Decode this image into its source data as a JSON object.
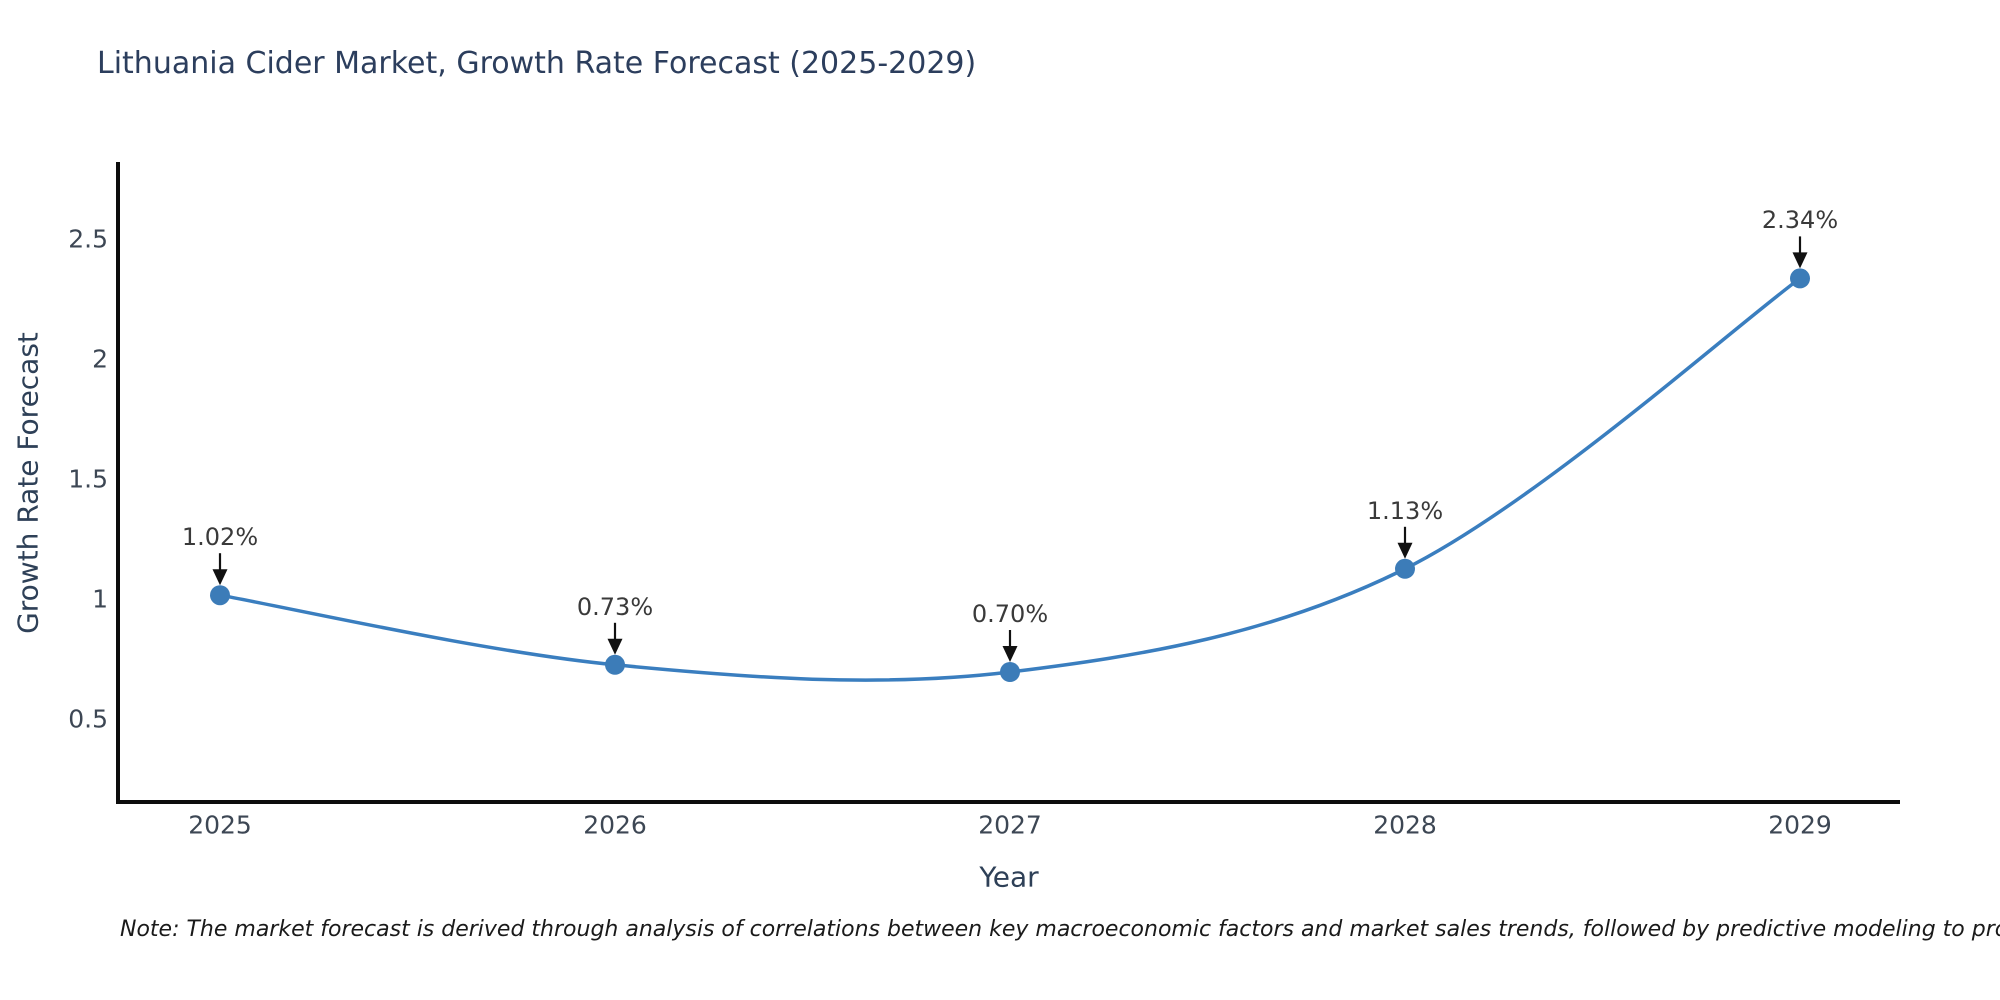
{
  "chart_data": {
    "type": "line",
    "title": "Lithuania Cider Market, Growth Rate Forecast (2025-2029)",
    "xlabel": "Year",
    "ylabel": "Growth Rate Forecast",
    "x": [
      2025,
      2026,
      2027,
      2028,
      2029
    ],
    "x_tick_labels": [
      "2025",
      "2026",
      "2027",
      "2028",
      "2029"
    ],
    "series": [
      {
        "name": "Growth Rate Forecast",
        "values": [
          1.02,
          0.73,
          0.7,
          1.13,
          2.34
        ],
        "point_labels": [
          "1.02%",
          "0.73%",
          "0.70%",
          "1.13%",
          "2.34%"
        ]
      }
    ],
    "yticks": [
      0.5,
      1,
      1.5,
      2,
      2.5
    ],
    "y_tick_labels": [
      "0.5",
      "1",
      "1.5",
      "2",
      "2.5"
    ],
    "ylim": [
      0.16,
      2.83
    ],
    "grid": false,
    "legend_position": "none",
    "line_shape": "spline",
    "annotation_arrows": true
  },
  "note": {
    "text": "Note: The market forecast is derived through analysis of correlations between key macroeconomic factors and market sales trends, followed by predictive modeling to project future sales."
  },
  "colors": {
    "title": "#2c3e5d",
    "axis_label": "#2e4057",
    "tick_label": "#3d4754",
    "annotation_text": "#3a3a3a",
    "spine": "#0d0d0d",
    "line": "#3a7ebf",
    "marker": "#3c7cb8",
    "arrow": "#111111",
    "note": "#1a1a1a",
    "background": "#ffffff"
  }
}
